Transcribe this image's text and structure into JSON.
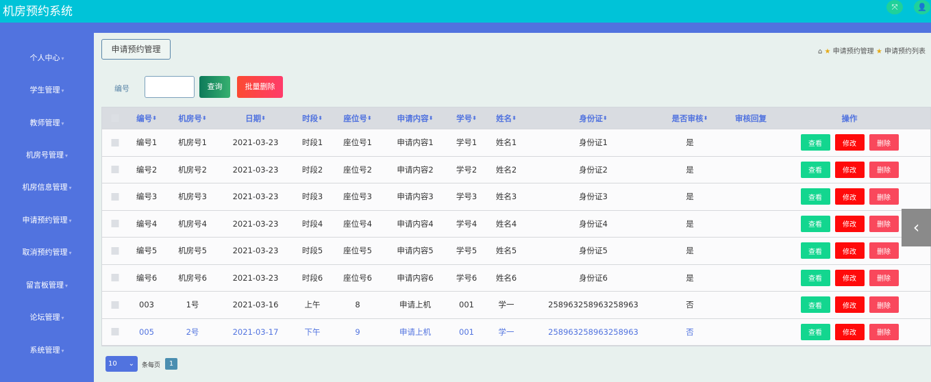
{
  "app": {
    "title": "机房预约系统",
    "icons": [
      "fullscreen-icon",
      "user-icon"
    ]
  },
  "sidebar": {
    "items": [
      "个人中心",
      "学生管理",
      "教师管理",
      "机房号管理",
      "机房信息管理",
      "申请预约管理",
      "取消预约管理",
      "留言板管理",
      "论坛管理",
      "系统管理"
    ]
  },
  "page": {
    "tab": "申请预约管理",
    "breadcrumb": [
      "申请预约管理",
      "申请预约列表"
    ]
  },
  "search": {
    "label": "编号",
    "value": "",
    "query": "查询",
    "batch_delete": "批量删除"
  },
  "table": {
    "headers": [
      "编号",
      "机房号",
      "日期",
      "时段",
      "座位号",
      "申请内容",
      "学号",
      "姓名",
      "身份证",
      "是否审核",
      "审核回复",
      "操作"
    ],
    "sort_glyph": "⬍",
    "rows": [
      [
        "编号1",
        "机房号1",
        "2021-03-23",
        "时段1",
        "座位号1",
        "申请内容1",
        "学号1",
        "姓名1",
        "身份证1",
        "是",
        ""
      ],
      [
        "编号2",
        "机房号2",
        "2021-03-23",
        "时段2",
        "座位号2",
        "申请内容2",
        "学号2",
        "姓名2",
        "身份证2",
        "是",
        ""
      ],
      [
        "编号3",
        "机房号3",
        "2021-03-23",
        "时段3",
        "座位号3",
        "申请内容3",
        "学号3",
        "姓名3",
        "身份证3",
        "是",
        ""
      ],
      [
        "编号4",
        "机房号4",
        "2021-03-23",
        "时段4",
        "座位号4",
        "申请内容4",
        "学号4",
        "姓名4",
        "身份证4",
        "是",
        ""
      ],
      [
        "编号5",
        "机房号5",
        "2021-03-23",
        "时段5",
        "座位号5",
        "申请内容5",
        "学号5",
        "姓名5",
        "身份证5",
        "是",
        ""
      ],
      [
        "编号6",
        "机房号6",
        "2021-03-23",
        "时段6",
        "座位号6",
        "申请内容6",
        "学号6",
        "姓名6",
        "身份证6",
        "是",
        ""
      ],
      [
        "003",
        "1号",
        "2021-03-16",
        "上午",
        "8",
        "申请上机",
        "001",
        "学一",
        "258963258963258963",
        "否",
        ""
      ],
      [
        "005",
        "2号",
        "2021-03-17",
        "下午",
        "9",
        "申请上机",
        "001",
        "学一",
        "258963258963258963",
        "否",
        ""
      ]
    ],
    "actions": {
      "view": "查看",
      "edit": "修改",
      "delete": "删除"
    }
  },
  "pagination": {
    "page_size": "10",
    "per_page_label": "条每页",
    "current_page": "1"
  },
  "colors": {
    "topbar": "#00c3d8",
    "sidebar": "#5173df",
    "view": "#13d68f",
    "edit": "#ff0a0a",
    "delete": "#f9485c"
  }
}
